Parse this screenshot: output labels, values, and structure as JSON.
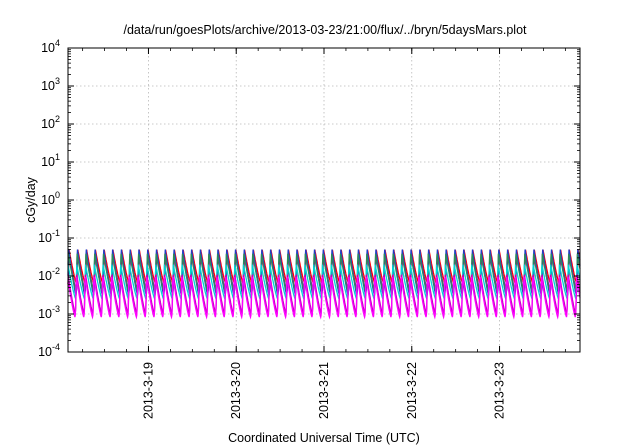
{
  "chart_data": {
    "type": "line",
    "title": "/data/run/goesPlots/archive/2013-03-23/21:00/flux/../bryn/5daysMars.plot",
    "xlabel": "Coordinated Universal Time (UTC)",
    "ylabel": "cGy/day",
    "yscale": "log",
    "ylim": [
      0.0001,
      10000
    ],
    "y_ticks": [
      {
        "base": "10",
        "exp": "4"
      },
      {
        "base": "10",
        "exp": "3"
      },
      {
        "base": "10",
        "exp": "2"
      },
      {
        "base": "10",
        "exp": "1"
      },
      {
        "base": "10",
        "exp": "0"
      },
      {
        "base": "10",
        "exp": "-1"
      },
      {
        "base": "10",
        "exp": "-2"
      },
      {
        "base": "10",
        "exp": "-3"
      },
      {
        "base": "10",
        "exp": "-4"
      }
    ],
    "xlim": [
      "2013-03-18 02:00",
      "2013-03-23 22:00"
    ],
    "x_ticks": [
      "2013-3-19",
      "2013-3-20",
      "2013-3-21",
      "2013-3-22",
      "2013-3-23"
    ],
    "grid": true,
    "cycles_per_day": 10,
    "series": [
      {
        "color": "#ff0000",
        "peak": 0.05,
        "trough": 0.006
      },
      {
        "color": "#7a1fa2",
        "peak": 0.045,
        "trough": 0.004
      },
      {
        "color": "#1e3ec8",
        "peak": 0.055,
        "trough": 0.003
      },
      {
        "color": "#2e8b57",
        "peak": 0.04,
        "trough": 0.004
      },
      {
        "color": "#00d5d5",
        "peak": 0.02,
        "trough": 0.0025
      },
      {
        "color": "#c000c0",
        "peak": 0.012,
        "trough": 0.001
      },
      {
        "color": "#ff00ff",
        "peak": 0.01,
        "trough": 0.0008
      }
    ]
  }
}
